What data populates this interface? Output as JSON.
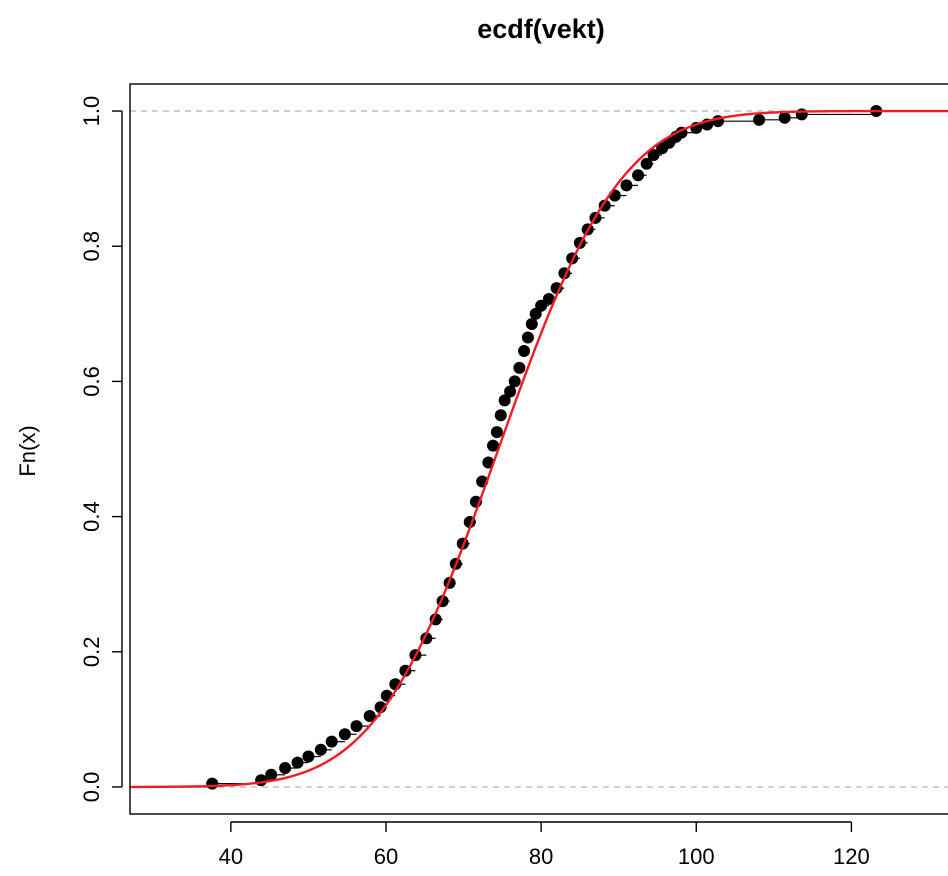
{
  "chart_data": {
    "type": "scatter",
    "title": "ecdf(vekt)",
    "xlabel": "",
    "ylabel": "Fn(x)",
    "xlim": [
      27,
      134
    ],
    "ylim": [
      -0.04,
      1.04
    ],
    "x_ticks": [
      40,
      60,
      80,
      100,
      120
    ],
    "y_ticks": [
      0.0,
      0.2,
      0.4,
      0.6,
      0.8,
      1.0
    ],
    "x_tick_labels": [
      "40",
      "60",
      "80",
      "100",
      "120"
    ],
    "y_tick_labels": [
      "0.0",
      "0.2",
      "0.4",
      "0.6",
      "0.8",
      "1.0"
    ],
    "reference_lines_y": [
      0,
      1
    ],
    "grid": false,
    "series": [
      {
        "kind": "ecdf-points",
        "color": "#000000",
        "x": [
          37.6,
          43.9,
          45.2,
          47.0,
          48.6,
          50.0,
          51.6,
          53.0,
          54.7,
          56.2,
          57.9,
          59.3,
          60.1,
          61.2,
          62.5,
          63.8,
          65.2,
          66.4,
          67.3,
          68.2,
          69.0,
          69.9,
          70.8,
          71.6,
          72.4,
          73.2,
          73.8,
          74.3,
          74.8,
          75.3,
          76.0,
          76.6,
          77.2,
          77.8,
          78.3,
          78.8,
          79.3,
          80.0,
          81.0,
          82.0,
          83.0,
          84.0,
          85.0,
          86.0,
          87.0,
          88.2,
          89.5,
          91.0,
          92.5,
          93.6,
          94.5,
          95.6,
          96.5,
          97.4,
          98.1,
          100.0,
          101.4,
          102.8,
          108.1,
          111.4,
          113.6,
          123.2
        ],
        "y": [
          0.005,
          0.01,
          0.018,
          0.028,
          0.036,
          0.045,
          0.055,
          0.067,
          0.078,
          0.09,
          0.105,
          0.118,
          0.135,
          0.152,
          0.172,
          0.195,
          0.22,
          0.248,
          0.275,
          0.302,
          0.33,
          0.36,
          0.392,
          0.422,
          0.452,
          0.48,
          0.505,
          0.525,
          0.55,
          0.572,
          0.585,
          0.6,
          0.62,
          0.645,
          0.665,
          0.685,
          0.7,
          0.712,
          0.722,
          0.738,
          0.76,
          0.782,
          0.805,
          0.825,
          0.842,
          0.86,
          0.875,
          0.89,
          0.905,
          0.922,
          0.935,
          0.945,
          0.953,
          0.962,
          0.968,
          0.975,
          0.98,
          0.985,
          0.987,
          0.99,
          0.995,
          1.0
        ]
      },
      {
        "kind": "fitted-normal-cdf",
        "color": "#ee1c25",
        "mean": 74.5,
        "sd": 12.4
      }
    ]
  }
}
